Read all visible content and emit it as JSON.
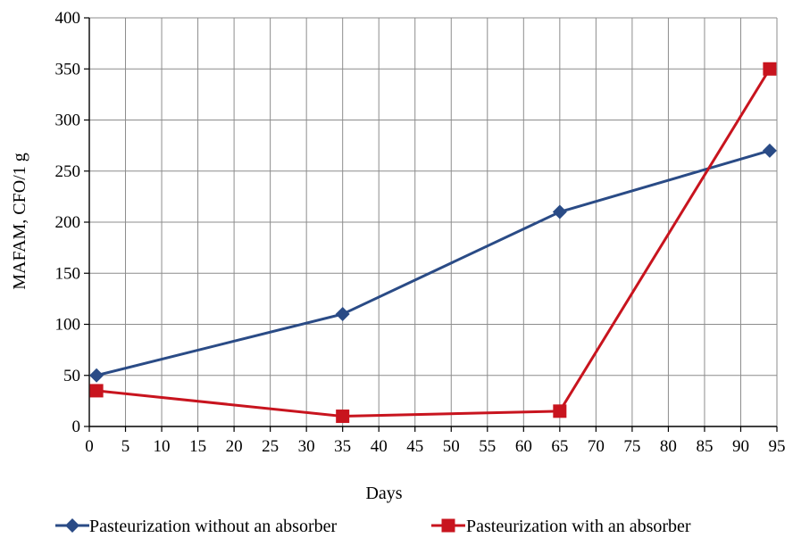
{
  "chart_data": {
    "type": "line",
    "xlabel": "Days",
    "ylabel": "MAFAM, CFO/1 g",
    "xlim": [
      0,
      95
    ],
    "ylim": [
      0,
      400
    ],
    "x_ticks": [
      "0",
      "5",
      "10",
      "15",
      "20",
      "25",
      "30",
      "35",
      "40",
      "45",
      "50",
      "55",
      "60",
      "65",
      "70",
      "75",
      "80",
      "85",
      "90",
      "95"
    ],
    "y_ticks": [
      "0",
      "50",
      "100",
      "150",
      "200",
      "250",
      "300",
      "350",
      "400"
    ],
    "grid": true,
    "legend_position": "bottom",
    "series": [
      {
        "name": "Pasteurization without an absorber",
        "color": "#2a4b86",
        "marker": "diamond",
        "x": [
          1,
          35,
          65,
          94
        ],
        "y": [
          50,
          110,
          210,
          270
        ]
      },
      {
        "name": "Pasteurization with an absorber",
        "color": "#c8141e",
        "marker": "square",
        "x": [
          1,
          35,
          65,
          94
        ],
        "y": [
          35,
          10,
          15,
          350
        ]
      }
    ]
  }
}
